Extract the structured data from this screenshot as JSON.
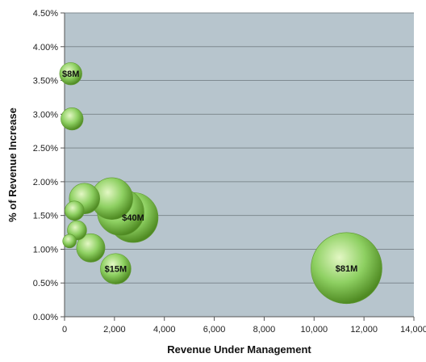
{
  "chart_data": {
    "type": "bubble",
    "title": "",
    "xlabel": "Revenue Under Management",
    "ylabel": "% of Revenue Increase",
    "xlim": [
      0,
      14000
    ],
    "ylim": [
      0,
      4.5
    ],
    "x_ticks": [
      "0",
      "2,000",
      "4,000",
      "6,000",
      "8,000",
      "10,000",
      "12,000",
      "14,000"
    ],
    "y_ticks": [
      "0.00%",
      "0.50%",
      "1.00%",
      "1.50%",
      "2.00%",
      "2.50%",
      "3.00%",
      "3.50%",
      "4.00%",
      "4.50%"
    ],
    "grid": "horizontal",
    "legend": "none",
    "colors": {
      "plot_background": "#b7c5cd",
      "bubble_highlight": "#e3f7c4",
      "bubble_mid": "#8ed062",
      "bubble_dark": "#4f8a22",
      "gridline": "#7f8a90"
    },
    "points": [
      {
        "x": 250,
        "y": 3.6,
        "size": 8,
        "label": "$8M"
      },
      {
        "x": 300,
        "y": 2.93,
        "size": 8,
        "label": ""
      },
      {
        "x": 200,
        "y": 1.12,
        "size": 3,
        "label": ""
      },
      {
        "x": 500,
        "y": 1.28,
        "size": 6,
        "label": ""
      },
      {
        "x": 400,
        "y": 1.57,
        "size": 6,
        "label": ""
      },
      {
        "x": 800,
        "y": 1.75,
        "size": 15,
        "label": ""
      },
      {
        "x": 1050,
        "y": 1.02,
        "size": 13,
        "label": ""
      },
      {
        "x": 1900,
        "y": 1.75,
        "size": 28,
        "label": ""
      },
      {
        "x": 2250,
        "y": 1.55,
        "size": 35,
        "label": ""
      },
      {
        "x": 2750,
        "y": 1.47,
        "size": 40,
        "label": "$40M"
      },
      {
        "x": 2050,
        "y": 0.71,
        "size": 15,
        "label": "$15M"
      },
      {
        "x": 11300,
        "y": 0.72,
        "size": 81,
        "label": "$81M"
      }
    ]
  }
}
